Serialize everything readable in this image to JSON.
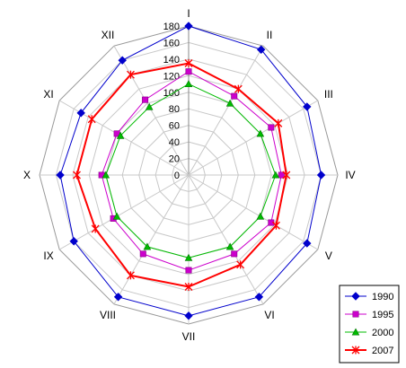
{
  "chart_data": {
    "type": "radar",
    "categories": [
      "I",
      "II",
      "III",
      "IV",
      "V",
      "VI",
      "VII",
      "VIII",
      "IX",
      "X",
      "XI",
      "XII"
    ],
    "rlim": [
      0,
      180
    ],
    "ticks": [
      0,
      20,
      40,
      60,
      80,
      100,
      120,
      140,
      160,
      180
    ],
    "tick_labels": [
      "0",
      "20",
      "40",
      "60",
      "80",
      "100",
      "120",
      "140",
      "160",
      "180"
    ],
    "grid": true,
    "legend_position": "bottom-right",
    "series": [
      {
        "name": "1990",
        "color": "#0000cc",
        "marker": "diamond",
        "values": [
          180,
          175,
          165,
          160,
          165,
          170,
          170,
          170,
          160,
          155,
          150,
          160
        ]
      },
      {
        "name": "1995",
        "color": "#cc00cc",
        "marker": "square",
        "values": [
          125,
          110,
          115,
          112,
          115,
          110,
          115,
          110,
          105,
          105,
          100,
          105
        ]
      },
      {
        "name": "2000",
        "color": "#00bb00",
        "marker": "triangle",
        "values": [
          110,
          100,
          100,
          105,
          100,
          100,
          100,
          100,
          100,
          100,
          95,
          95
        ]
      },
      {
        "name": "2007",
        "color": "#ff0000",
        "marker": "star",
        "values": [
          135,
          120,
          125,
          118,
          122,
          125,
          135,
          140,
          130,
          135,
          135,
          140
        ]
      }
    ]
  }
}
